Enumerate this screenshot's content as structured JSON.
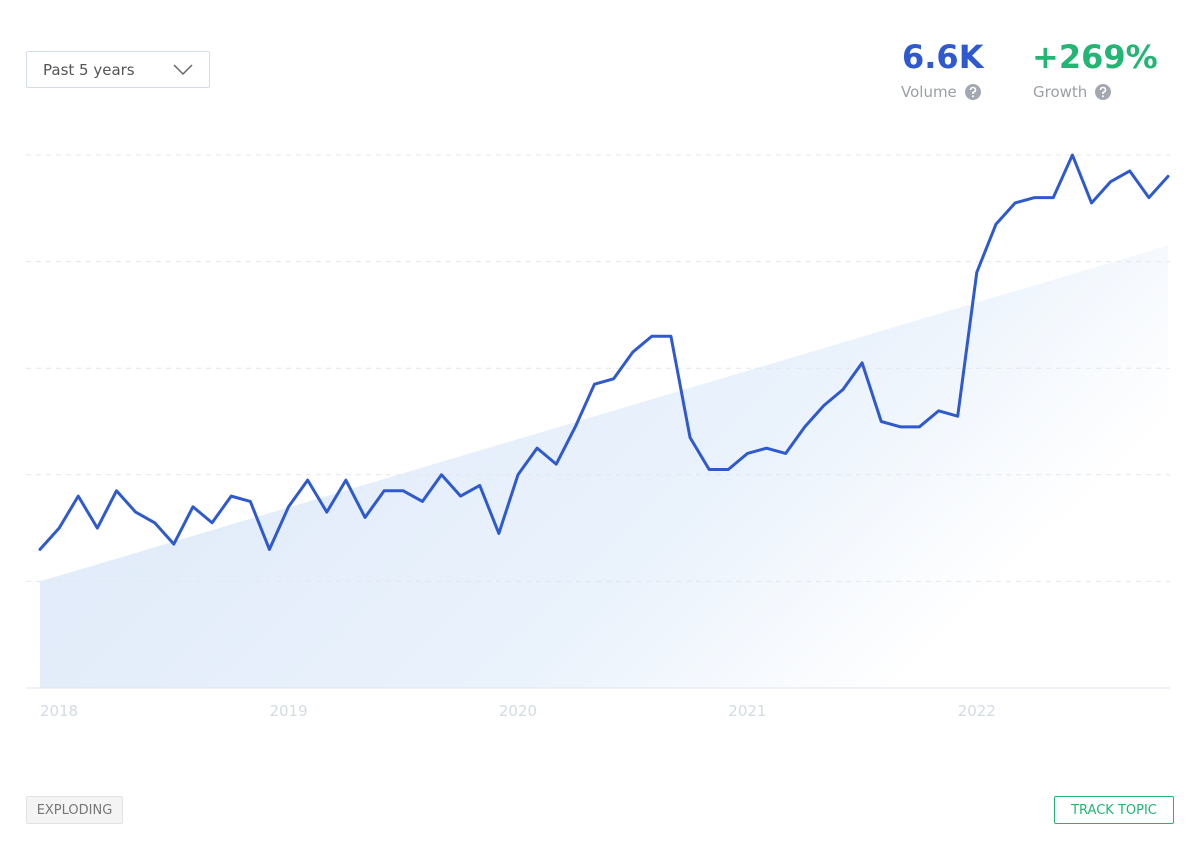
{
  "controls": {
    "range": "Past 5 years"
  },
  "stats": {
    "volume": {
      "value": "6.6K",
      "label": "Volume"
    },
    "growth": {
      "value": "+269%",
      "label": "Growth"
    }
  },
  "footer": {
    "status": "EXPLODING",
    "action": "TRACK TOPIC"
  },
  "chart_data": {
    "type": "line",
    "categories": [
      null,
      "2018",
      null,
      null,
      null,
      null,
      null,
      null,
      null,
      null,
      null,
      null,
      null,
      "2019",
      null,
      null,
      null,
      null,
      null,
      null,
      null,
      null,
      null,
      null,
      null,
      "2020",
      null,
      null,
      null,
      null,
      null,
      null,
      null,
      null,
      null,
      null,
      null,
      "2021",
      null,
      null,
      null,
      null,
      null,
      null,
      null,
      null,
      null,
      null,
      null,
      "2022",
      null,
      null,
      null,
      null,
      null,
      null,
      null,
      null,
      null,
      null
    ],
    "values": [
      26,
      30,
      36,
      30,
      37,
      33,
      31,
      27,
      34,
      31,
      36,
      35,
      26,
      34,
      39,
      33,
      39,
      32,
      37,
      37,
      35,
      40,
      36,
      38,
      29,
      40,
      45,
      42,
      49,
      57,
      58,
      63,
      66,
      66,
      47,
      41,
      41,
      44,
      45,
      44,
      49,
      53,
      56,
      61,
      50,
      49,
      49,
      52,
      51,
      78,
      87,
      91,
      92,
      92,
      100,
      91,
      95,
      97,
      92,
      96
    ],
    "trend": [
      20,
      83
    ],
    "color": "#2f5acf",
    "ylim": [
      0,
      100
    ],
    "yticks": [
      0,
      20,
      40,
      60,
      80,
      100
    ],
    "grid": true
  }
}
